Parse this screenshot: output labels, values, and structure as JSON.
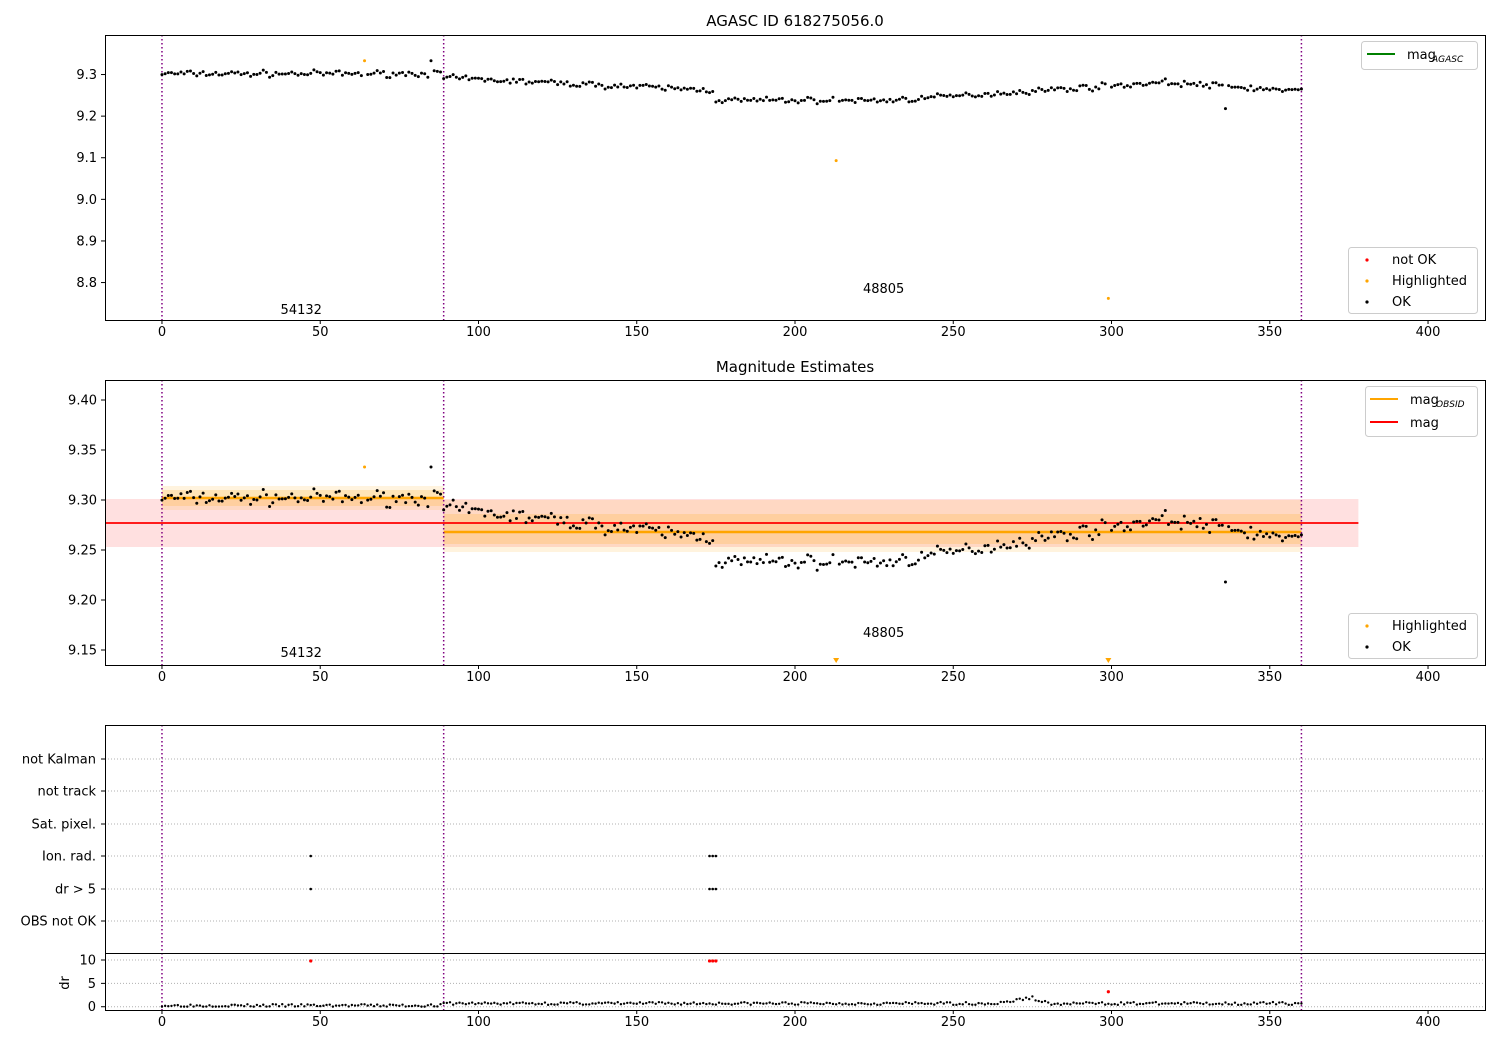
{
  "colors": {
    "ok": "#000000",
    "highlighted": "#ffa500",
    "not_ok": "#ff0000",
    "agasc_line": "#008000",
    "mag_line": "#ff0000",
    "obsid_line": "#ffa500",
    "boundary": "#800080",
    "grid": "#b0b0b0"
  },
  "chart_data": [
    {
      "type": "scatter",
      "title": "AGASC ID 618275056.0",
      "xlim": [
        -18,
        418
      ],
      "ylim": [
        8.71,
        9.395
      ],
      "x_ticks": [
        0,
        50,
        100,
        150,
        200,
        250,
        300,
        350,
        400
      ],
      "y_ticks": [
        8.8,
        8.9,
        9.0,
        9.1,
        9.2,
        9.3
      ],
      "y_tick_labels": [
        "8.8",
        "8.9",
        "9.0",
        "9.1",
        "9.2",
        "9.3"
      ],
      "obsid_boundaries": [
        0,
        89,
        360
      ],
      "obsid_labels": [
        {
          "text": "54132",
          "x": 44,
          "y": 8.725
        },
        {
          "text": "48805",
          "x": 228,
          "y": 8.775
        }
      ],
      "highlighted_points": [
        {
          "x": 64,
          "y": 9.333
        },
        {
          "x": 213,
          "y": 9.093
        },
        {
          "x": 299,
          "y": 8.762
        }
      ],
      "legend_upper": {
        "position": "upper right",
        "entries": [
          {
            "label": "mag",
            "subscript": "AGASC"
          }
        ]
      },
      "legend_lower": {
        "position": "lower right",
        "entries": [
          {
            "label": "not OK"
          },
          {
            "label": "Highlighted"
          },
          {
            "label": "OK"
          }
        ]
      }
    },
    {
      "type": "scatter",
      "title": "Magnitude Estimates",
      "xlim": [
        -18,
        418
      ],
      "ylim": [
        9.135,
        9.42
      ],
      "x_ticks": [
        0,
        50,
        100,
        150,
        200,
        250,
        300,
        350,
        400
      ],
      "y_ticks": [
        9.15,
        9.2,
        9.25,
        9.3,
        9.35,
        9.4
      ],
      "y_tick_labels": [
        "9.15",
        "9.20",
        "9.25",
        "9.30",
        "9.35",
        "9.40"
      ],
      "obsid_boundaries": [
        0,
        89,
        360
      ],
      "obsid_labels": [
        {
          "text": "54132",
          "x": 44,
          "y": 9.143
        },
        {
          "text": "48805",
          "x": 228,
          "y": 9.163
        }
      ],
      "highlighted_points": [
        {
          "x": 64,
          "y": 9.333
        }
      ],
      "off_scale_markers": [
        213,
        299
      ],
      "mag": {
        "value": 9.277,
        "band": [
          9.253,
          9.301
        ],
        "x_range": [
          -18,
          378
        ]
      },
      "mag_obsid": [
        {
          "x_range": [
            0,
            89
          ],
          "value": 9.302,
          "inner_band": [
            9.294,
            9.31
          ],
          "outer_band": [
            9.29,
            9.314
          ]
        },
        {
          "x_range": [
            89,
            360
          ],
          "value": 9.268,
          "inner_band": [
            9.256,
            9.286
          ],
          "outer_band": [
            9.248,
            9.3
          ]
        }
      ],
      "legend_upper": {
        "position": "upper right",
        "entries": [
          {
            "label": "mag",
            "subscript": "OBSID"
          },
          {
            "label": "mag"
          }
        ]
      },
      "legend_lower": {
        "position": "lower right",
        "entries": [
          {
            "label": "Highlighted"
          },
          {
            "label": "OK"
          }
        ]
      }
    },
    {
      "type": "scatter",
      "xlim": [
        -18,
        418
      ],
      "x_ticks": [
        0,
        50,
        100,
        150,
        200,
        250,
        300,
        350,
        400
      ],
      "obsid_boundaries": [
        0,
        89,
        360
      ],
      "flag_rows": [
        "not Kalman",
        "not track",
        "Sat. pixel.",
        "Ion. rad.",
        "dr > 5",
        "OBS not OK"
      ],
      "flag_points": [
        {
          "row": "Ion. rad.",
          "x": [
            47,
            173,
            174,
            175
          ]
        },
        {
          "row": "dr > 5",
          "x": [
            47,
            173,
            174,
            175
          ]
        }
      ]
    },
    {
      "type": "scatter",
      "ylabel": "dr",
      "xlim": [
        -18,
        418
      ],
      "ylim": [
        -0.7,
        11.5
      ],
      "y_ticks": [
        0,
        5,
        10
      ],
      "x_ticks": [
        0,
        50,
        100,
        150,
        200,
        250,
        300,
        350,
        400
      ],
      "obsid_boundaries": [
        0,
        89,
        360
      ],
      "not_ok_points": [
        {
          "x": 47,
          "y": 9.8
        },
        {
          "x": 173,
          "y": 9.8
        },
        {
          "x": 174,
          "y": 9.8
        },
        {
          "x": 175,
          "y": 9.8
        },
        {
          "x": 299,
          "y": 3.2
        }
      ]
    }
  ]
}
